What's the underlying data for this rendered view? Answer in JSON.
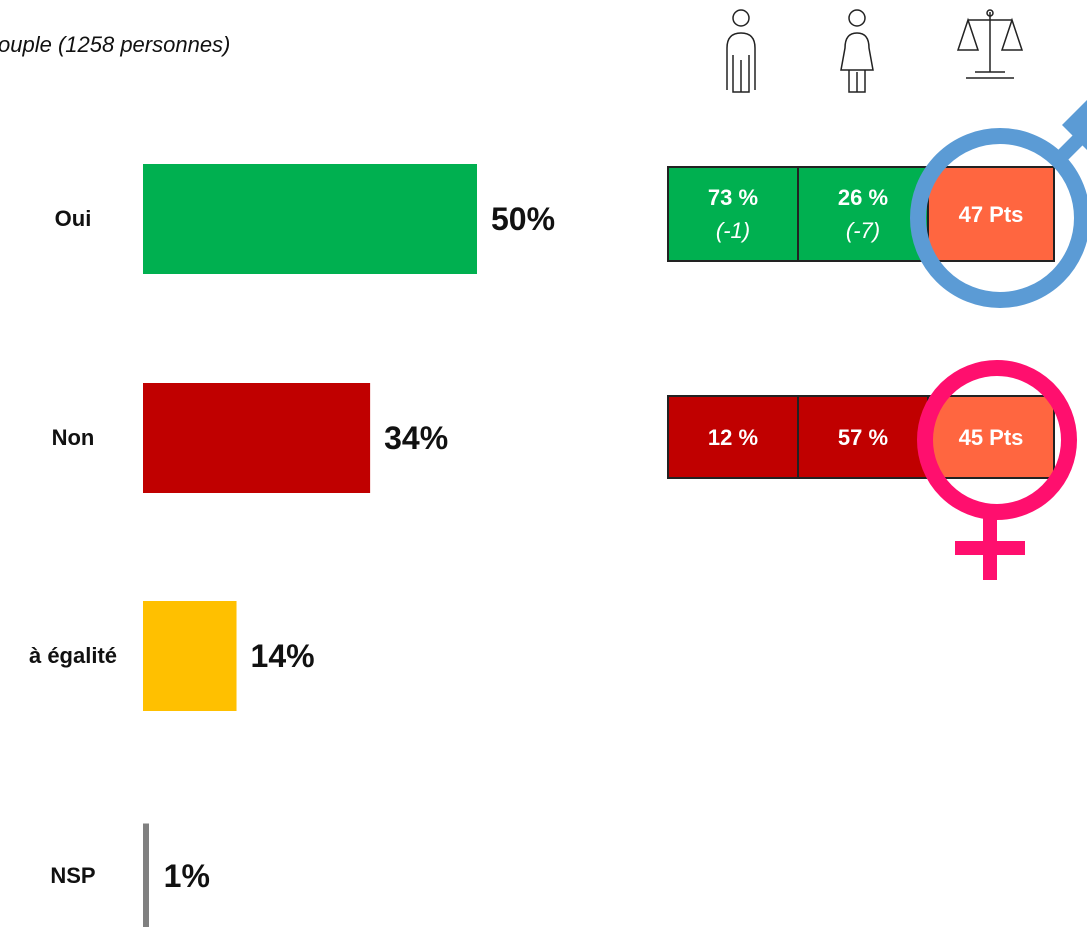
{
  "chart_data": {
    "type": "bar",
    "orientation": "horizontal",
    "subtitle": "ouple (1258 personnes)",
    "categories": [
      "Oui",
      "Non",
      "à égalité",
      "NSP"
    ],
    "values": [
      50,
      34,
      14,
      1
    ],
    "value_labels": [
      "50%",
      "34%",
      "14%",
      "1%"
    ],
    "colors": [
      "#00b050",
      "#c00000",
      "#ffc000",
      "#808080"
    ],
    "xlim": [
      0,
      100
    ]
  },
  "breakdown": {
    "rows": [
      {
        "color": "#00b050",
        "cells": [
          {
            "value": "73 %",
            "change": "(-1)"
          },
          {
            "value": "26 %",
            "change": "(-7)"
          }
        ],
        "gap": "47 Pts"
      },
      {
        "color": "#c00000",
        "cells": [
          {
            "value": "12 %"
          },
          {
            "value": "57 %"
          }
        ],
        "gap": "45 Pts"
      }
    ],
    "gap_color": "#ff6640"
  }
}
